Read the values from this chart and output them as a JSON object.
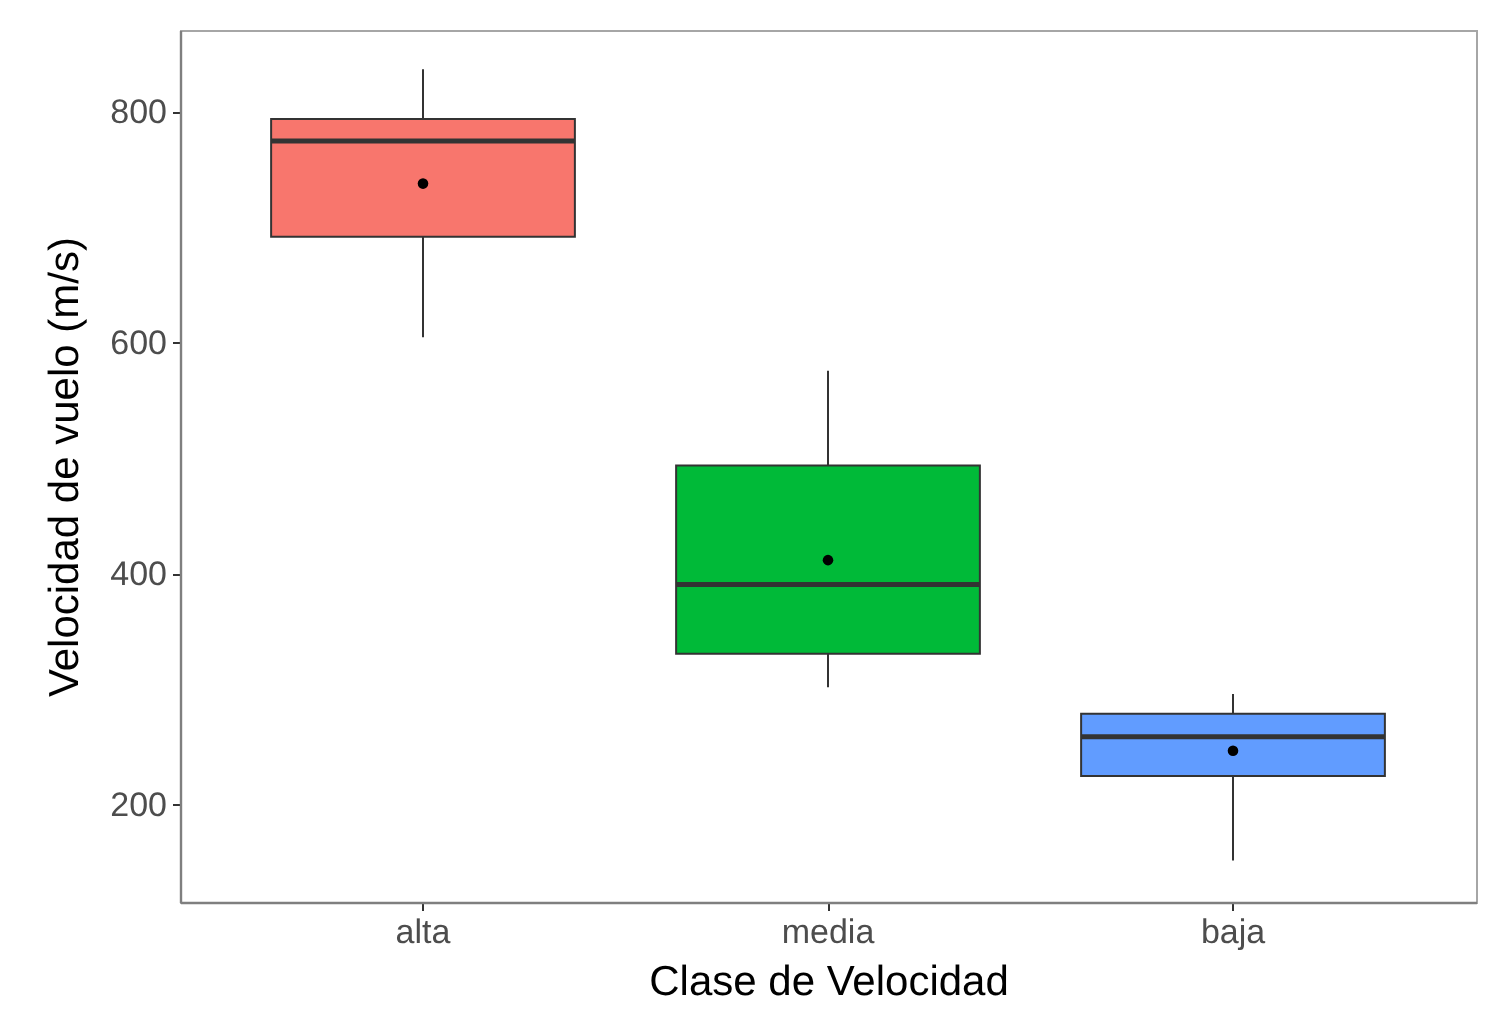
{
  "chart_data": {
    "type": "box",
    "xlabel": "Clase de Velocidad",
    "ylabel": "Velocidad de vuelo (m/s)",
    "categories": [
      "alta",
      "media",
      "baja"
    ],
    "boxes": [
      {
        "low": 605,
        "q1": 692,
        "median": 775,
        "q3": 794,
        "high": 837,
        "mean": 738
      },
      {
        "low": 302,
        "q1": 331,
        "median": 391,
        "q3": 494,
        "high": 576,
        "mean": 412
      },
      {
        "low": 152,
        "q1": 225,
        "median": 259,
        "q3": 279,
        "high": 296,
        "mean": 247
      }
    ],
    "colors": [
      "#f8766d",
      "#00ba38",
      "#619cff"
    ],
    "ylim": [
      116,
      871
    ],
    "yticks": [
      200,
      400,
      600,
      800
    ],
    "grid": false
  }
}
